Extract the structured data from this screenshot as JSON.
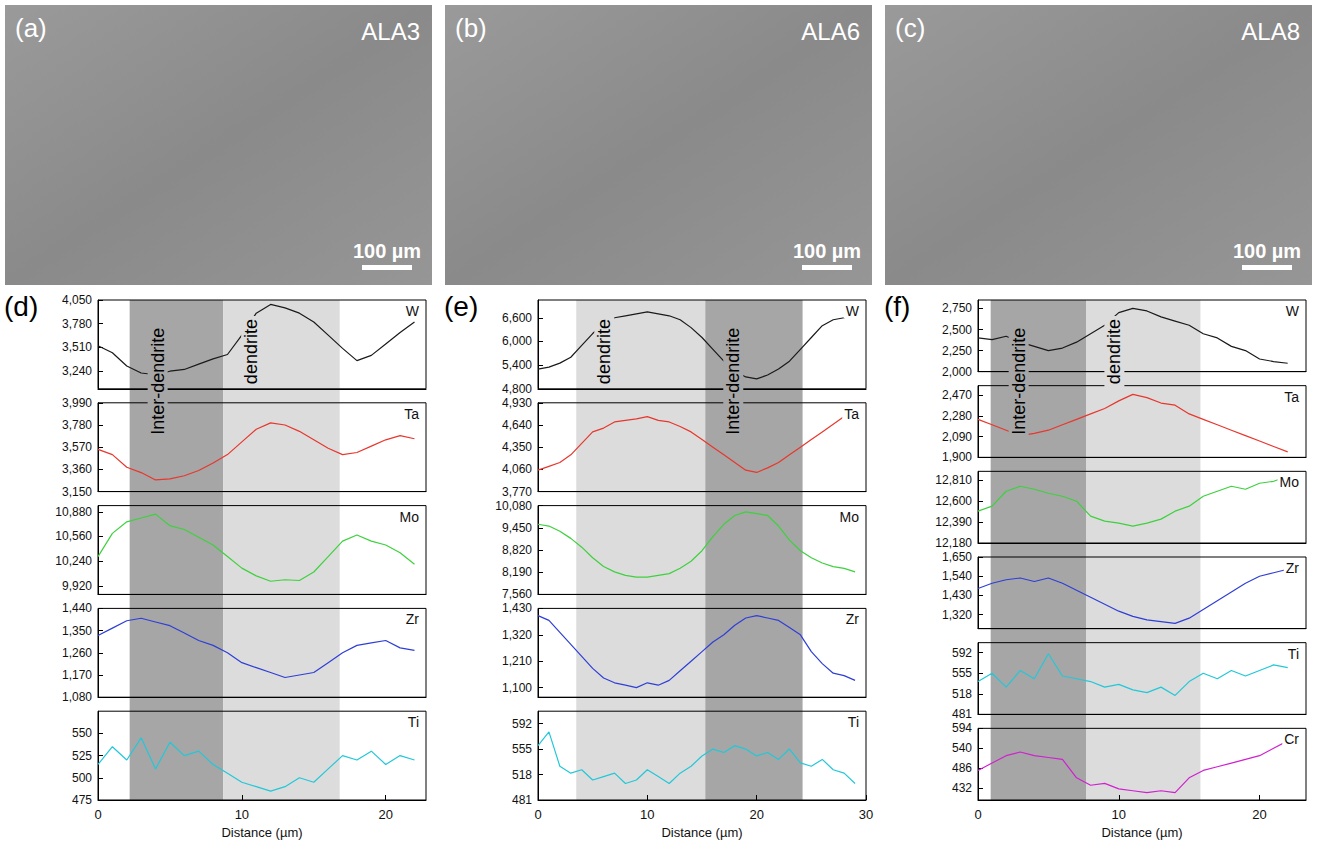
{
  "images": [
    {
      "title": "(a)",
      "label": "ALA3",
      "scale_bar": "100 µm"
    },
    {
      "title": "(b)",
      "label": "ALA6",
      "scale_bar": "100 µm"
    },
    {
      "title": "(c)",
      "label": "ALA8",
      "scale_bar": "100 µm"
    }
  ],
  "chart_data": [
    {
      "type": "line",
      "title": "(d)",
      "xlabel": "Distance (µm)",
      "x": [
        0,
        1,
        2,
        3,
        4,
        5,
        6,
        7,
        8,
        9,
        10,
        11,
        12,
        13,
        14,
        15,
        16,
        17,
        18,
        19,
        20,
        21,
        22
      ],
      "xlim": [
        0,
        22.8
      ],
      "xticks": [
        0,
        10,
        20
      ],
      "regions": [
        {
          "label": "Inter-dendrite",
          "x": [
            2.2,
            8.7
          ],
          "color": "#a6a6a6"
        },
        {
          "label": "dendrite",
          "x": [
            8.7,
            16.8
          ],
          "color": "#dcdcdc"
        }
      ],
      "series": [
        {
          "name": "W",
          "color": "#1a1a1a",
          "ylim": [
            3040,
            4050
          ],
          "yticks": [
            3240,
            3510,
            3780,
            4050
          ],
          "values": [
            3530,
            3450,
            3300,
            3220,
            3200,
            3240,
            3260,
            3320,
            3380,
            3430,
            3650,
            3900,
            4000,
            3960,
            3900,
            3800,
            3650,
            3500,
            3360,
            3420,
            3550,
            3680,
            3800
          ]
        },
        {
          "name": "Ta",
          "color": "#e8372d",
          "ylim": [
            3150,
            3990
          ],
          "yticks": [
            3150,
            3360,
            3570,
            3780,
            3990
          ],
          "values": [
            3550,
            3500,
            3380,
            3330,
            3260,
            3270,
            3300,
            3350,
            3420,
            3500,
            3620,
            3740,
            3800,
            3780,
            3720,
            3640,
            3560,
            3500,
            3520,
            3580,
            3640,
            3680,
            3650
          ]
        },
        {
          "name": "Mo",
          "color": "#3ed13e",
          "ylim": [
            9810,
            10960
          ],
          "yticks": [
            9920,
            10240,
            10560,
            10880
          ],
          "values": [
            10300,
            10600,
            10750,
            10800,
            10850,
            10700,
            10650,
            10550,
            10450,
            10300,
            10150,
            10050,
            9980,
            10000,
            9990,
            10100,
            10300,
            10500,
            10580,
            10500,
            10450,
            10350,
            10200
          ]
        },
        {
          "name": "Zr",
          "color": "#2f3fd6",
          "ylim": [
            1080,
            1440
          ],
          "yticks": [
            1080,
            1170,
            1260,
            1350,
            1440
          ],
          "values": [
            1330,
            1360,
            1390,
            1400,
            1385,
            1370,
            1340,
            1310,
            1290,
            1260,
            1220,
            1200,
            1180,
            1160,
            1170,
            1180,
            1220,
            1260,
            1290,
            1300,
            1310,
            1280,
            1270
          ]
        },
        {
          "name": "Ti",
          "color": "#22c8d8",
          "ylim": [
            475,
            575
          ],
          "yticks": [
            475,
            500,
            525,
            550
          ],
          "values": [
            515,
            535,
            520,
            545,
            510,
            540,
            525,
            530,
            515,
            505,
            495,
            490,
            485,
            490,
            500,
            495,
            510,
            525,
            520,
            530,
            515,
            525,
            520
          ]
        }
      ]
    },
    {
      "type": "line",
      "title": "(e)",
      "xlabel": "Distance (µm)",
      "x": [
        0,
        1,
        2,
        3,
        4,
        5,
        6,
        7,
        8,
        9,
        10,
        11,
        12,
        13,
        14,
        15,
        16,
        17,
        18,
        19,
        20,
        21,
        22,
        23,
        24,
        25,
        26,
        27,
        28,
        29
      ],
      "xlim": [
        0,
        30
      ],
      "xticks": [
        0,
        10,
        20,
        30
      ],
      "regions": [
        {
          "label": "dendrite",
          "x": [
            3.5,
            15.3
          ],
          "color": "#dcdcdc"
        },
        {
          "label": "Inter-dendrite",
          "x": [
            15.3,
            24.2
          ],
          "color": "#a6a6a6"
        }
      ],
      "series": [
        {
          "name": "W",
          "color": "#1a1a1a",
          "ylim": [
            4800,
            7050
          ],
          "yticks": [
            4800,
            5400,
            6000,
            6600
          ],
          "values": [
            5300,
            5350,
            5450,
            5600,
            5900,
            6200,
            6450,
            6600,
            6650,
            6700,
            6750,
            6700,
            6650,
            6550,
            6350,
            6100,
            5800,
            5500,
            5250,
            5100,
            5050,
            5150,
            5300,
            5500,
            5800,
            6100,
            6400,
            6550,
            6600,
            6700
          ]
        },
        {
          "name": "Ta",
          "color": "#e8372d",
          "ylim": [
            3770,
            4930
          ],
          "yticks": [
            3770,
            4060,
            4350,
            4640,
            4930
          ],
          "values": [
            4050,
            4100,
            4150,
            4250,
            4400,
            4550,
            4600,
            4680,
            4700,
            4720,
            4750,
            4700,
            4680,
            4620,
            4550,
            4450,
            4350,
            4250,
            4150,
            4050,
            4020,
            4080,
            4150,
            4250,
            4350,
            4450,
            4550,
            4650,
            4750,
            4800
          ]
        },
        {
          "name": "Mo",
          "color": "#3ed13e",
          "ylim": [
            7560,
            10080
          ],
          "yticks": [
            7560,
            8190,
            8820,
            9450,
            10080
          ],
          "values": [
            9550,
            9500,
            9350,
            9150,
            8900,
            8600,
            8350,
            8200,
            8100,
            8050,
            8050,
            8100,
            8150,
            8300,
            8500,
            8800,
            9200,
            9550,
            9800,
            9900,
            9850,
            9800,
            9500,
            9100,
            8800,
            8600,
            8450,
            8350,
            8300,
            8200
          ]
        },
        {
          "name": "Zr",
          "color": "#2f3fd6",
          "ylim": [
            1060,
            1430
          ],
          "yticks": [
            1100,
            1210,
            1320,
            1430
          ],
          "values": [
            1400,
            1380,
            1330,
            1280,
            1230,
            1180,
            1140,
            1120,
            1110,
            1100,
            1120,
            1110,
            1130,
            1170,
            1210,
            1250,
            1290,
            1320,
            1360,
            1390,
            1400,
            1390,
            1380,
            1350,
            1320,
            1250,
            1200,
            1160,
            1150,
            1130
          ]
        },
        {
          "name": "Ti",
          "color": "#22c8d8",
          "ylim": [
            481,
            610
          ],
          "yticks": [
            481,
            518,
            555,
            592
          ],
          "values": [
            560,
            580,
            530,
            520,
            525,
            510,
            515,
            520,
            505,
            510,
            525,
            515,
            505,
            520,
            530,
            545,
            555,
            550,
            560,
            555,
            545,
            550,
            540,
            555,
            535,
            530,
            540,
            525,
            520,
            505
          ]
        }
      ]
    },
    {
      "type": "line",
      "title": "(f)",
      "xlabel": "Distance (µm)",
      "x": [
        0,
        1,
        2,
        3,
        4,
        5,
        6,
        7,
        8,
        9,
        10,
        11,
        12,
        13,
        14,
        15,
        16,
        17,
        18,
        19,
        20,
        21,
        22
      ],
      "xlim": [
        0,
        23.3
      ],
      "xticks": [
        0,
        10,
        20
      ],
      "regions": [
        {
          "label": "Inter-dendrite",
          "x": [
            0.9,
            7.7
          ],
          "color": "#a6a6a6"
        },
        {
          "label": "dendrite",
          "x": [
            7.7,
            15.8
          ],
          "color": "#dcdcdc"
        }
      ],
      "series": [
        {
          "name": "W",
          "color": "#1a1a1a",
          "ylim": [
            2000,
            2850
          ],
          "yticks": [
            2000,
            2250,
            2500,
            2750
          ],
          "values": [
            2400,
            2380,
            2420,
            2350,
            2300,
            2250,
            2280,
            2350,
            2450,
            2550,
            2700,
            2750,
            2720,
            2650,
            2600,
            2550,
            2450,
            2400,
            2300,
            2250,
            2150,
            2120,
            2100
          ]
        },
        {
          "name": "Ta",
          "color": "#e8372d",
          "ylim": [
            1900,
            2560
          ],
          "yticks": [
            1900,
            2090,
            2280,
            2470
          ],
          "values": [
            2250,
            2200,
            2150,
            2100,
            2120,
            2150,
            2200,
            2250,
            2300,
            2350,
            2420,
            2480,
            2450,
            2400,
            2380,
            2300,
            2250,
            2200,
            2150,
            2100,
            2050,
            2000,
            1950
          ]
        },
        {
          "name": "Mo",
          "color": "#3ed13e",
          "ylim": [
            12180,
            12900
          ],
          "yticks": [
            12180,
            12390,
            12600,
            12810
          ],
          "values": [
            12500,
            12550,
            12700,
            12750,
            12720,
            12680,
            12650,
            12600,
            12450,
            12400,
            12380,
            12350,
            12380,
            12420,
            12500,
            12550,
            12650,
            12700,
            12750,
            12720,
            12780,
            12800,
            12850
          ]
        },
        {
          "name": "Zr",
          "color": "#2f3fd6",
          "ylim": [
            1240,
            1650
          ],
          "yticks": [
            1320,
            1430,
            1540,
            1650
          ],
          "values": [
            1470,
            1500,
            1520,
            1530,
            1510,
            1530,
            1500,
            1460,
            1420,
            1380,
            1340,
            1310,
            1290,
            1280,
            1270,
            1300,
            1350,
            1400,
            1450,
            1500,
            1540,
            1560,
            1580
          ]
        },
        {
          "name": "Ti",
          "color": "#22c8d8",
          "ylim": [
            481,
            610
          ],
          "yticks": [
            481,
            518,
            555,
            592
          ],
          "values": [
            540,
            555,
            530,
            560,
            545,
            590,
            550,
            545,
            540,
            530,
            535,
            525,
            520,
            530,
            515,
            540,
            555,
            545,
            560,
            550,
            560,
            570,
            565
          ]
        },
        {
          "name": "Cr",
          "color": "#d020d0",
          "ylim": [
            400,
            594
          ],
          "yticks": [
            432,
            486,
            540,
            594
          ],
          "values": [
            480,
            500,
            520,
            530,
            520,
            515,
            510,
            460,
            440,
            445,
            430,
            425,
            420,
            425,
            420,
            460,
            480,
            490,
            500,
            510,
            520,
            540,
            560
          ]
        }
      ]
    }
  ]
}
